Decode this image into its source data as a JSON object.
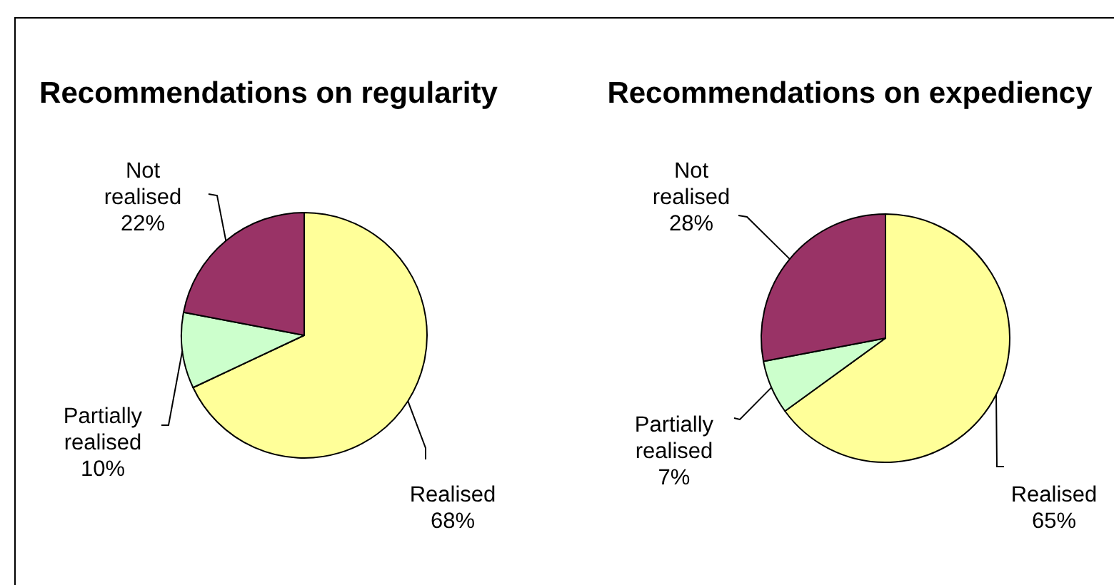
{
  "chart_data": [
    {
      "type": "pie",
      "title": "Recommendations on regularity",
      "categories": [
        "Realised",
        "Partially realised",
        "Not realised"
      ],
      "values": [
        68,
        10,
        22
      ],
      "colors": [
        "#ffff99",
        "#ccffcc",
        "#993366"
      ],
      "value_labels": [
        "68%",
        "10%",
        "22%"
      ]
    },
    {
      "type": "pie",
      "title": "Recommendations on expediency",
      "categories": [
        "Realised",
        "Partially realised",
        "Not realised"
      ],
      "values": [
        65,
        7,
        28
      ],
      "colors": [
        "#ffff99",
        "#ccffcc",
        "#993366"
      ],
      "value_labels": [
        "65%",
        "7%",
        "28%"
      ]
    }
  ]
}
